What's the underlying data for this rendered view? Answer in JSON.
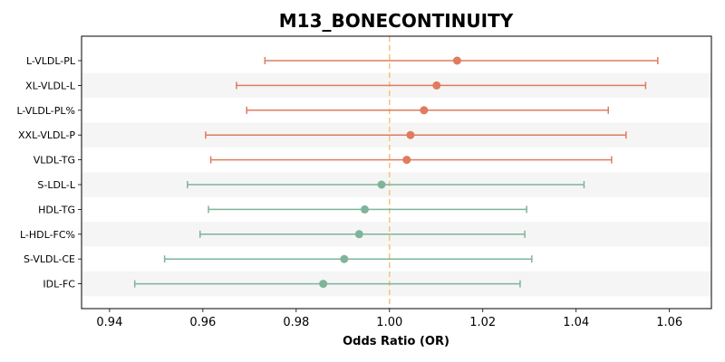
{
  "chart_data": {
    "type": "forest",
    "title": "M13_BONECONTINUITY",
    "xlabel": "Odds Ratio (OR)",
    "ylabel": "",
    "xlim": [
      0.934,
      1.069
    ],
    "xticks": [
      0.94,
      0.96,
      0.98,
      1.0,
      1.02,
      1.04,
      1.06
    ],
    "xtick_labels": [
      "0.94",
      "0.96",
      "0.98",
      "1.00",
      "1.02",
      "1.04",
      "1.06"
    ],
    "reference_line": 1.0,
    "grid": false,
    "alternating_row_shading": true,
    "colors": {
      "positive": "#E07B5F",
      "negative": "#7FB49A",
      "reference": "#F5C77E",
      "shade": "#F5F5F5"
    },
    "rows": [
      {
        "label": "L-VLDL-PL",
        "or": 1.0145,
        "lo": 0.9733,
        "hi": 1.0575,
        "color": "positive"
      },
      {
        "label": "XL-VLDL-L",
        "or": 1.0101,
        "lo": 0.9672,
        "hi": 1.0549,
        "color": "positive"
      },
      {
        "label": "L-VLDL-PL%",
        "or": 1.0074,
        "lo": 0.9694,
        "hi": 1.0469,
        "color": "positive"
      },
      {
        "label": "XXL-VLDL-P",
        "or": 1.0045,
        "lo": 0.9606,
        "hi": 1.0507,
        "color": "positive"
      },
      {
        "label": "VLDL-TG",
        "or": 1.0037,
        "lo": 0.9617,
        "hi": 1.0476,
        "color": "positive"
      },
      {
        "label": "S-LDL-L",
        "or": 0.9983,
        "lo": 0.9567,
        "hi": 1.0417,
        "color": "negative"
      },
      {
        "label": "HDL-TG",
        "or": 0.9947,
        "lo": 0.9612,
        "hi": 1.0294,
        "color": "negative"
      },
      {
        "label": "L-HDL-FC%",
        "or": 0.9935,
        "lo": 0.9594,
        "hi": 1.029,
        "color": "negative"
      },
      {
        "label": "S-VLDL-CE",
        "or": 0.9903,
        "lo": 0.9518,
        "hi": 1.0305,
        "color": "negative"
      },
      {
        "label": "IDL-FC",
        "or": 0.9858,
        "lo": 0.9454,
        "hi": 1.028,
        "color": "negative"
      }
    ]
  }
}
